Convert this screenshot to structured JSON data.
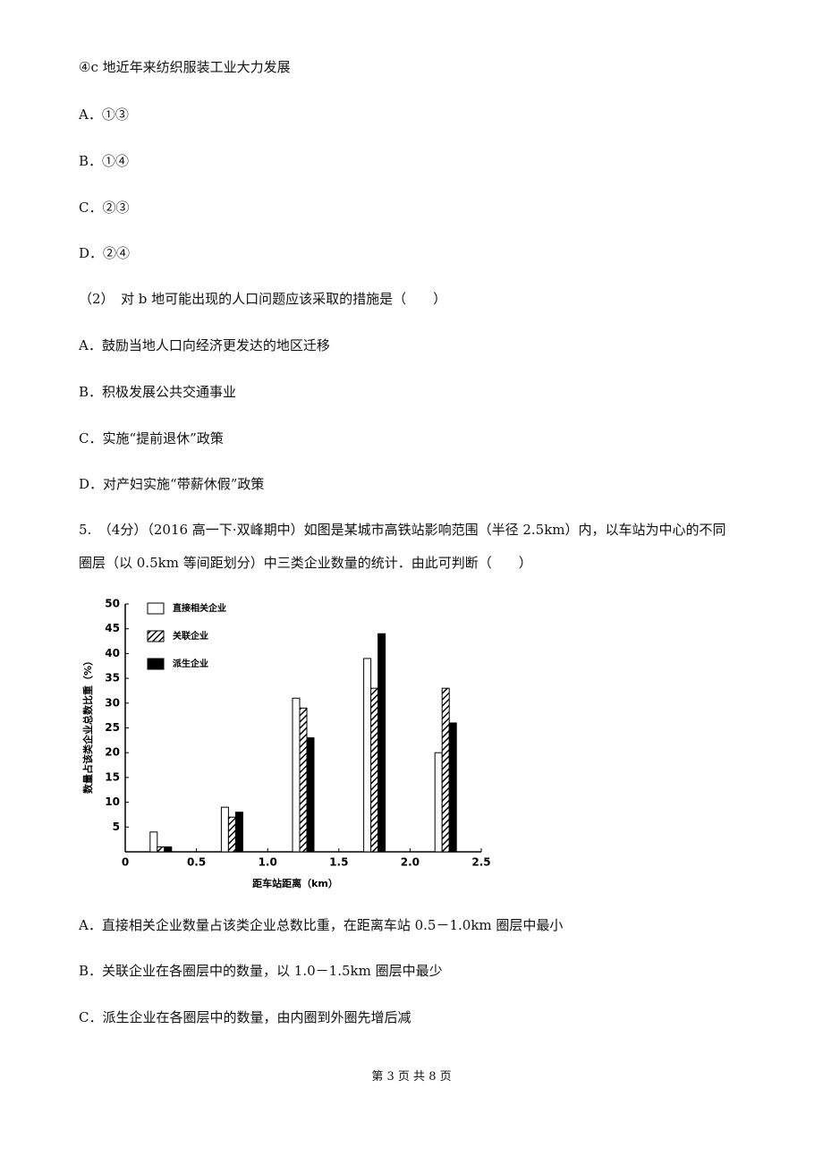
{
  "question4": {
    "item": "④c 地近年来纺织服装工业大力发展",
    "options1": [
      "A．①③",
      "B．①④",
      "C．②③",
      "D．②④"
    ],
    "sub2": "（2）　对 b 地可能出现的人口问题应该采取的措施是（　　）",
    "options2": [
      "A．鼓励当地人口向经济更发达的地区迁移",
      "B．积极发展公共交通事业",
      "C．实施“提前退休”政策",
      "D．对产妇实施“带薪休假”政策"
    ]
  },
  "question5": {
    "stem": [
      "5.　（4分）（2016 高一下·双峰期中）如图是某城市高铁站影响范围（半径 2.5km）内，以车站为中心的不同",
      "圈层（以 0.5km 等间距划分）中三类企业数量的统计．由此可判断（　　）"
    ],
    "options": [
      "A．直接相关企业数量占该类企业总数比重，在距离车站 0.5－1.0km 圈层中最小",
      "B．关联企业在各圈层中的数量，以 1.0－1.5km 圈层中最少",
      "C．派生企业在各圈层中的数量，由内圈到外圈先增后减"
    ]
  },
  "chart_data": {
    "type": "bar",
    "x_label": "距车站距离（km）",
    "y_label": "数量占该类企业总数比重（%）",
    "x": [
      0.25,
      0.75,
      1.25,
      1.75,
      2.25
    ],
    "series": [
      {
        "name": "直接相关企业",
        "color": "#ffffff",
        "values": [
          4,
          9,
          31,
          39,
          20
        ]
      },
      {
        "name": "关联企业",
        "color": "#000000",
        "hatch": true,
        "values": [
          1,
          7,
          29,
          33,
          33
        ]
      },
      {
        "name": "派生企业",
        "color": "#000000",
        "values": [
          1,
          8,
          23,
          44,
          26
        ]
      }
    ],
    "xlim": [
      0,
      2.5
    ],
    "xticks": [
      0,
      0.5,
      {
        "value": 1,
        "label": "1.0"
      },
      1.5,
      {
        "value": 2,
        "label": "2.0"
      },
      2.5
    ],
    "ylim": [
      0,
      50
    ],
    "yticks": [
      5,
      10,
      15,
      20,
      25,
      30,
      35,
      40,
      45,
      50
    ],
    "legend": "top-left"
  },
  "footer": "第 3 页 共 8 页"
}
